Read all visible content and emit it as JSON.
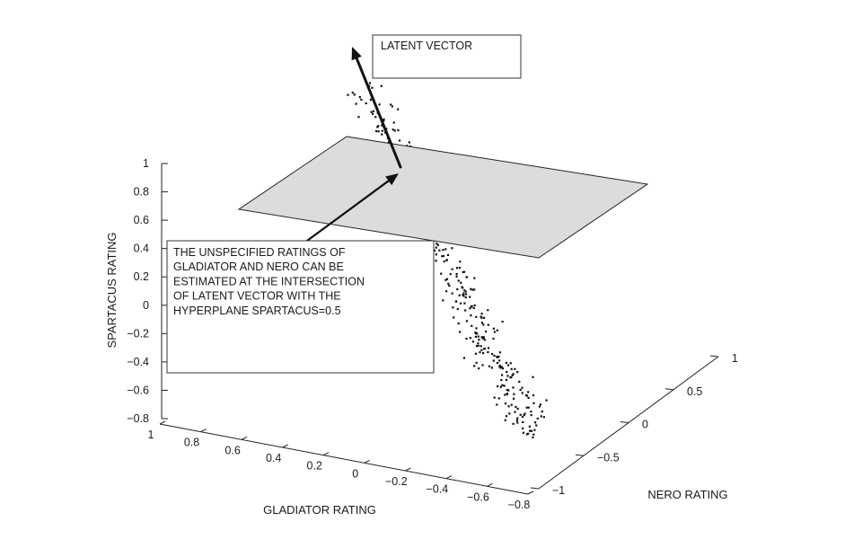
{
  "chart_data": {
    "type": "scatter",
    "projection": "3d",
    "title": "",
    "xlabel": "GLADIATOR RATING",
    "ylabel": "NERO RATING",
    "zlabel": "SPARTACUS RATING",
    "x_ticks": [
      "1",
      "0.8",
      "0.6",
      "0.4",
      "0.2",
      "0",
      "−0.2",
      "−0.4",
      "−0.6",
      "−0.8"
    ],
    "y_ticks": [
      "−1",
      "−0.5",
      "0",
      "0.5",
      "1"
    ],
    "z_ticks": [
      "1",
      "0.8",
      "0.6",
      "0.4",
      "0.2",
      "0",
      "−0.2",
      "−0.4",
      "−0.6",
      "−0.8"
    ],
    "xlim": [
      1,
      -0.8
    ],
    "ylim": [
      -1,
      1
    ],
    "zlim": [
      -0.8,
      1
    ],
    "grid": false,
    "points_description_values": {
      "distribution": "elongated cloud along latent direction",
      "count": 300
    },
    "hyperplane": {
      "equation": "SPARTACUS=0.5",
      "z": 0.5,
      "color": "#dcdcdc"
    },
    "latent_vector": {
      "from_z": 0.5,
      "to_z": 1.0
    },
    "annotations": [
      {
        "id": "latent",
        "lines": [
          "LATENT VECTOR"
        ]
      },
      {
        "id": "intersection",
        "lines": [
          "THE UNSPECIFIED RATINGS OF",
          "GLADIATOR AND NERO CAN BE",
          "ESTIMATED AT THE INTERSECTION",
          "OF LATENT VECTOR WITH THE",
          "HYPERPLANE SPARTACUS=0.5"
        ]
      }
    ]
  }
}
